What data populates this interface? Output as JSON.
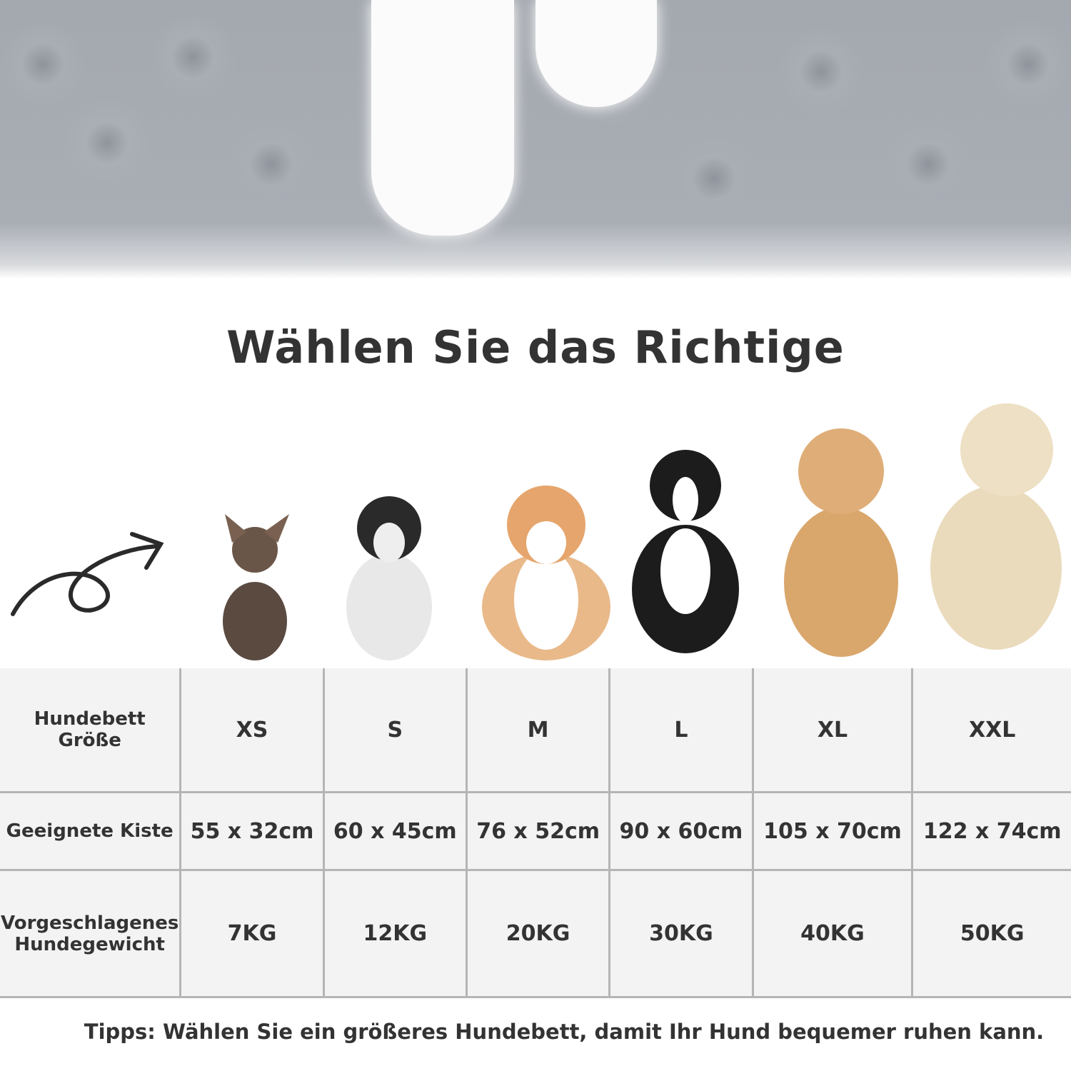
{
  "title": "Wählen Sie das Richtige",
  "table": {
    "rows": [
      {
        "label": "Hundebett Größe",
        "values": [
          "XS",
          "S",
          "M",
          "L",
          "XL",
          "XXL"
        ]
      },
      {
        "label": "Geeignete Kiste",
        "values": [
          "55 x 32cm",
          "60 x 45cm",
          "76 x 52cm",
          "90 x 60cm",
          "105 x 70cm",
          "122 x 74cm"
        ]
      },
      {
        "label": "Vorgeschlagenes Hundegewicht",
        "values": [
          "7KG",
          "12KG",
          "20KG",
          "30KG",
          "40KG",
          "50KG"
        ]
      }
    ]
  },
  "tips": "Tipps: Wählen Sie ein größeres Hundebett, damit Ihr Hund bequemer ruhen kann.",
  "dogs": [
    "chihuahua",
    "french-bulldog",
    "corgi",
    "border-collie",
    "golden-retriever",
    "labrador"
  ],
  "colors": {
    "table_bg": "#f3f3f3",
    "border": "#b5b5b5",
    "text": "#333333",
    "fur": "#a9adb4"
  }
}
